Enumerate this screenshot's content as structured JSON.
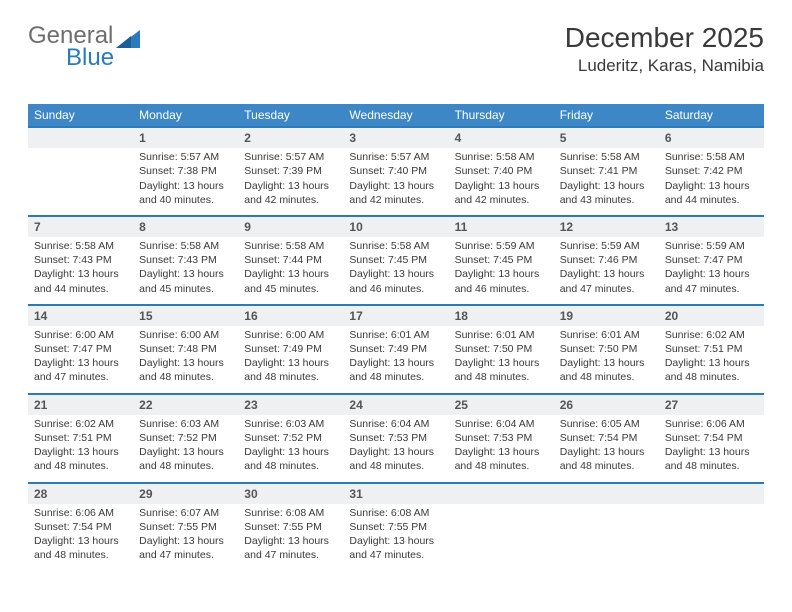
{
  "logo": {
    "text_gray": "General",
    "text_blue": "Blue"
  },
  "title": "December 2025",
  "location": "Luderitz, Karas, Namibia",
  "day_headers": [
    "Sunday",
    "Monday",
    "Tuesday",
    "Wednesday",
    "Thursday",
    "Friday",
    "Saturday"
  ],
  "colors": {
    "header_bg": "#3d87c7",
    "row_divider": "#2b7bbb",
    "daynum_bg": "#eef0f2"
  },
  "weeks": [
    {
      "nums": [
        "",
        "1",
        "2",
        "3",
        "4",
        "5",
        "6"
      ],
      "cells": [
        [],
        [
          "Sunrise: 5:57 AM",
          "Sunset: 7:38 PM",
          "Daylight: 13 hours and 40 minutes."
        ],
        [
          "Sunrise: 5:57 AM",
          "Sunset: 7:39 PM",
          "Daylight: 13 hours and 42 minutes."
        ],
        [
          "Sunrise: 5:57 AM",
          "Sunset: 7:40 PM",
          "Daylight: 13 hours and 42 minutes."
        ],
        [
          "Sunrise: 5:58 AM",
          "Sunset: 7:40 PM",
          "Daylight: 13 hours and 42 minutes."
        ],
        [
          "Sunrise: 5:58 AM",
          "Sunset: 7:41 PM",
          "Daylight: 13 hours and 43 minutes."
        ],
        [
          "Sunrise: 5:58 AM",
          "Sunset: 7:42 PM",
          "Daylight: 13 hours and 44 minutes."
        ]
      ]
    },
    {
      "nums": [
        "7",
        "8",
        "9",
        "10",
        "11",
        "12",
        "13"
      ],
      "cells": [
        [
          "Sunrise: 5:58 AM",
          "Sunset: 7:43 PM",
          "Daylight: 13 hours and 44 minutes."
        ],
        [
          "Sunrise: 5:58 AM",
          "Sunset: 7:43 PM",
          "Daylight: 13 hours and 45 minutes."
        ],
        [
          "Sunrise: 5:58 AM",
          "Sunset: 7:44 PM",
          "Daylight: 13 hours and 45 minutes."
        ],
        [
          "Sunrise: 5:58 AM",
          "Sunset: 7:45 PM",
          "Daylight: 13 hours and 46 minutes."
        ],
        [
          "Sunrise: 5:59 AM",
          "Sunset: 7:45 PM",
          "Daylight: 13 hours and 46 minutes."
        ],
        [
          "Sunrise: 5:59 AM",
          "Sunset: 7:46 PM",
          "Daylight: 13 hours and 47 minutes."
        ],
        [
          "Sunrise: 5:59 AM",
          "Sunset: 7:47 PM",
          "Daylight: 13 hours and 47 minutes."
        ]
      ]
    },
    {
      "nums": [
        "14",
        "15",
        "16",
        "17",
        "18",
        "19",
        "20"
      ],
      "cells": [
        [
          "Sunrise: 6:00 AM",
          "Sunset: 7:47 PM",
          "Daylight: 13 hours and 47 minutes."
        ],
        [
          "Sunrise: 6:00 AM",
          "Sunset: 7:48 PM",
          "Daylight: 13 hours and 48 minutes."
        ],
        [
          "Sunrise: 6:00 AM",
          "Sunset: 7:49 PM",
          "Daylight: 13 hours and 48 minutes."
        ],
        [
          "Sunrise: 6:01 AM",
          "Sunset: 7:49 PM",
          "Daylight: 13 hours and 48 minutes."
        ],
        [
          "Sunrise: 6:01 AM",
          "Sunset: 7:50 PM",
          "Daylight: 13 hours and 48 minutes."
        ],
        [
          "Sunrise: 6:01 AM",
          "Sunset: 7:50 PM",
          "Daylight: 13 hours and 48 minutes."
        ],
        [
          "Sunrise: 6:02 AM",
          "Sunset: 7:51 PM",
          "Daylight: 13 hours and 48 minutes."
        ]
      ]
    },
    {
      "nums": [
        "21",
        "22",
        "23",
        "24",
        "25",
        "26",
        "27"
      ],
      "cells": [
        [
          "Sunrise: 6:02 AM",
          "Sunset: 7:51 PM",
          "Daylight: 13 hours and 48 minutes."
        ],
        [
          "Sunrise: 6:03 AM",
          "Sunset: 7:52 PM",
          "Daylight: 13 hours and 48 minutes."
        ],
        [
          "Sunrise: 6:03 AM",
          "Sunset: 7:52 PM",
          "Daylight: 13 hours and 48 minutes."
        ],
        [
          "Sunrise: 6:04 AM",
          "Sunset: 7:53 PM",
          "Daylight: 13 hours and 48 minutes."
        ],
        [
          "Sunrise: 6:04 AM",
          "Sunset: 7:53 PM",
          "Daylight: 13 hours and 48 minutes."
        ],
        [
          "Sunrise: 6:05 AM",
          "Sunset: 7:54 PM",
          "Daylight: 13 hours and 48 minutes."
        ],
        [
          "Sunrise: 6:06 AM",
          "Sunset: 7:54 PM",
          "Daylight: 13 hours and 48 minutes."
        ]
      ]
    },
    {
      "nums": [
        "28",
        "29",
        "30",
        "31",
        "",
        "",
        ""
      ],
      "cells": [
        [
          "Sunrise: 6:06 AM",
          "Sunset: 7:54 PM",
          "Daylight: 13 hours and 48 minutes."
        ],
        [
          "Sunrise: 6:07 AM",
          "Sunset: 7:55 PM",
          "Daylight: 13 hours and 47 minutes."
        ],
        [
          "Sunrise: 6:08 AM",
          "Sunset: 7:55 PM",
          "Daylight: 13 hours and 47 minutes."
        ],
        [
          "Sunrise: 6:08 AM",
          "Sunset: 7:55 PM",
          "Daylight: 13 hours and 47 minutes."
        ],
        [],
        [],
        []
      ]
    }
  ]
}
